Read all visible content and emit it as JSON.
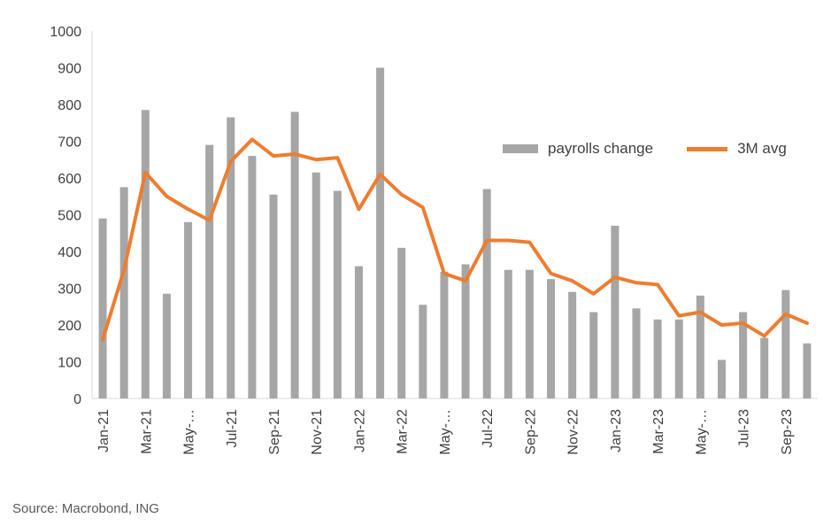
{
  "source": "Source: Macrobond, ING",
  "legend": {
    "items": [
      {
        "label": "payrolls change",
        "swatch": "bar",
        "color": "#a6a6a6"
      },
      {
        "label": "3M avg",
        "swatch": "line",
        "color": "#ed7d31"
      }
    ]
  },
  "y_axis": {
    "min": 0,
    "max": 1000,
    "step": 100
  },
  "x_axis": {
    "visible_labels": [
      "Jan-21",
      "Mar-21",
      "May-…",
      "Jul-21",
      "Sep-21",
      "Nov-21",
      "Jan-22",
      "Mar-22",
      "May-…",
      "Jul-22",
      "Sep-22",
      "Nov-22",
      "Jan-23",
      "Mar-23",
      "May-…",
      "Jul-23",
      "Sep-23"
    ],
    "label_every_n_categories": 2
  },
  "colors": {
    "bar": "#a6a6a6",
    "line": "#ed7d31",
    "axis_line": "#d9d9d9",
    "tick_text": "#404040"
  },
  "chart_data": {
    "type": "bar",
    "title": "",
    "xlabel": "",
    "ylabel": "",
    "ylim": [
      0,
      1000
    ],
    "ytick_step": 100,
    "grid": false,
    "legend_position": "inside-upper-right",
    "categories": [
      "Jan-21",
      "Feb-21",
      "Mar-21",
      "Apr-21",
      "May-21",
      "Jun-21",
      "Jul-21",
      "Aug-21",
      "Sep-21",
      "Oct-21",
      "Nov-21",
      "Dec-21",
      "Jan-22",
      "Feb-22",
      "Mar-22",
      "Apr-22",
      "May-22",
      "Jun-22",
      "Jul-22",
      "Aug-22",
      "Sep-22",
      "Oct-22",
      "Nov-22",
      "Dec-22",
      "Jan-23",
      "Feb-23",
      "Mar-23",
      "Apr-23",
      "May-23",
      "Jun-23",
      "Jul-23",
      "Aug-23",
      "Sep-23",
      "Oct-23"
    ],
    "series": [
      {
        "name": "payrolls change",
        "type": "bar",
        "color": "#a6a6a6",
        "values": [
          490,
          575,
          785,
          285,
          480,
          690,
          765,
          660,
          555,
          780,
          615,
          565,
          360,
          900,
          410,
          255,
          345,
          365,
          570,
          350,
          350,
          325,
          290,
          235,
          470,
          245,
          215,
          215,
          280,
          105,
          235,
          165,
          295,
          150
        ]
      },
      {
        "name": "3M avg",
        "type": "line",
        "color": "#ed7d31",
        "values": [
          160,
          350,
          615,
          550,
          515,
          485,
          645,
          705,
          660,
          665,
          650,
          655,
          515,
          610,
          555,
          520,
          340,
          320,
          430,
          430,
          425,
          340,
          320,
          285,
          330,
          315,
          310,
          225,
          235,
          200,
          205,
          170,
          230,
          205
        ]
      }
    ]
  }
}
